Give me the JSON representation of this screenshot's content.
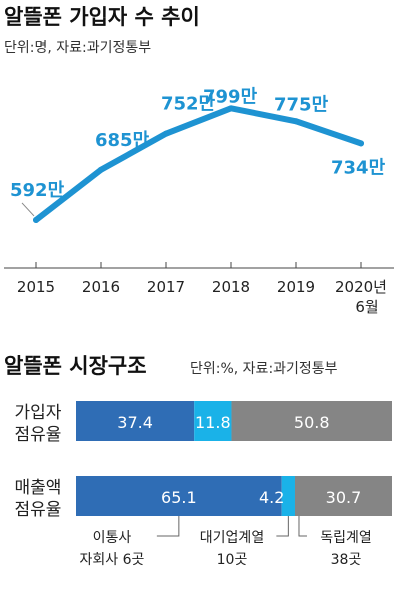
{
  "chart_data": [
    {
      "type": "line",
      "title": "알뜰폰 가입자 수 추이",
      "subtitle": "단위:명, 자료:과기정통부",
      "categories": [
        "2015",
        "2016",
        "2017",
        "2018",
        "2019",
        "2020년 6월"
      ],
      "tick_labels": [
        {
          "line1": "2015",
          "line2": ""
        },
        {
          "line1": "2016",
          "line2": ""
        },
        {
          "line1": "2017",
          "line2": ""
        },
        {
          "line1": "2018",
          "line2": ""
        },
        {
          "line1": "2019",
          "line2": ""
        },
        {
          "line1": "2020년",
          "line2": "6월"
        }
      ],
      "values": [
        592,
        685,
        752,
        799,
        775,
        734
      ],
      "value_labels": [
        "592만",
        "685만",
        "752만",
        "799만",
        "775만",
        "734만"
      ],
      "unit": "만",
      "ylim": [
        540,
        820
      ],
      "color": "#1e93d2",
      "grid": false
    },
    {
      "type": "bar",
      "orientation": "horizontal",
      "stacked": true,
      "title": "알뜰폰 시장구조",
      "subtitle": "단위:%, 자료:과기정통부",
      "categories": [
        {
          "line1": "가입자",
          "line2": "점유율"
        },
        {
          "line1": "매출액",
          "line2": "점유율"
        }
      ],
      "series": [
        {
          "name": "이동통신사 자회사 6곳",
          "color": "#2f6db5",
          "values": [
            37.4,
            65.1
          ]
        },
        {
          "name": "대기업계열 10곳",
          "color": "#1ab2e8",
          "values": [
            11.8,
            4.2
          ]
        },
        {
          "name": "독립계열 38곳",
          "color": "#858585",
          "values": [
            50.8,
            30.7
          ]
        }
      ],
      "value_labels": [
        [
          "37.4",
          "11.8",
          "50.8"
        ],
        [
          "65.1",
          "4.2",
          "30.7"
        ]
      ],
      "legend_notes": [
        {
          "line1": "이통사",
          "line2": "자회사 6곳"
        },
        {
          "line1": "대기업계열",
          "line2": "10곳"
        },
        {
          "line1": "독립계열",
          "line2": "38곳"
        }
      ]
    }
  ]
}
